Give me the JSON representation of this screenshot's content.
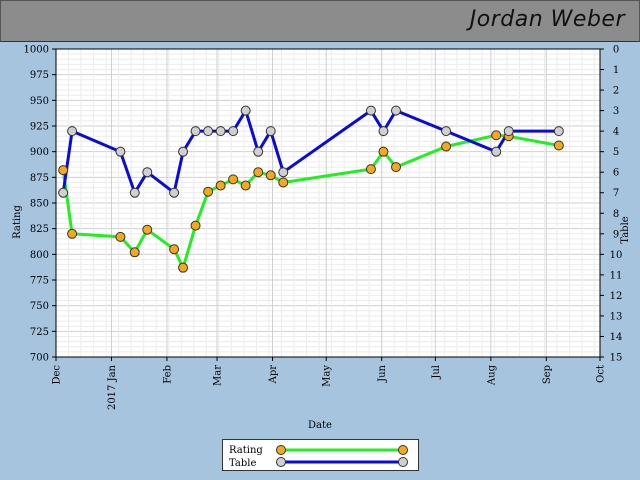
{
  "header": {
    "player_name": "Jordan Weber"
  },
  "chart_data": {
    "type": "line",
    "xlabel": "Date",
    "ylabel": "Rating",
    "ylabel_right": "Table",
    "ylim": [
      700,
      1000
    ],
    "y_ticks": [
      700,
      725,
      750,
      775,
      800,
      825,
      850,
      875,
      900,
      925,
      950,
      975,
      1000
    ],
    "y2lim": [
      0,
      15
    ],
    "y2_ticks": [
      0,
      1,
      2,
      3,
      4,
      5,
      6,
      7,
      8,
      9,
      10,
      11,
      12,
      13,
      14,
      15
    ],
    "y2_inverted": true,
    "xlim": [
      "2016-12-01",
      "2017-10-01"
    ],
    "x_ticks": [
      {
        "date": "2016-12-01",
        "label": "Dec"
      },
      {
        "date": "2017-01-01",
        "label": "2017 Jan"
      },
      {
        "date": "2017-02-01",
        "label": "Feb"
      },
      {
        "date": "2017-03-01",
        "label": "Mar"
      },
      {
        "date": "2017-04-01",
        "label": "Apr"
      },
      {
        "date": "2017-05-01",
        "label": "May"
      },
      {
        "date": "2017-06-01",
        "label": "Jun"
      },
      {
        "date": "2017-07-01",
        "label": "Jul"
      },
      {
        "date": "2017-08-01",
        "label": "Aug"
      },
      {
        "date": "2017-09-01",
        "label": "Sep"
      },
      {
        "date": "2017-10-01",
        "label": "Oct"
      }
    ],
    "grid": true,
    "legend_placement": "bottom-center",
    "series": [
      {
        "name": "Rating",
        "axis": "left",
        "line_color": "#22ee22",
        "marker_color": "#f5a81c",
        "points": [
          {
            "x": "2016-12-05",
            "y": 882
          },
          {
            "x": "2016-12-10",
            "y": 820
          },
          {
            "x": "2017-01-06",
            "y": 817
          },
          {
            "x": "2017-01-14",
            "y": 802
          },
          {
            "x": "2017-01-21",
            "y": 824
          },
          {
            "x": "2017-02-05",
            "y": 805
          },
          {
            "x": "2017-02-10",
            "y": 787
          },
          {
            "x": "2017-02-17",
            "y": 828
          },
          {
            "x": "2017-02-24",
            "y": 861
          },
          {
            "x": "2017-03-03",
            "y": 867
          },
          {
            "x": "2017-03-10",
            "y": 873
          },
          {
            "x": "2017-03-17",
            "y": 867
          },
          {
            "x": "2017-03-24",
            "y": 880
          },
          {
            "x": "2017-03-31",
            "y": 877
          },
          {
            "x": "2017-04-07",
            "y": 870
          },
          {
            "x": "2017-05-26",
            "y": 883
          },
          {
            "x": "2017-06-02",
            "y": 900
          },
          {
            "x": "2017-06-09",
            "y": 885
          },
          {
            "x": "2017-07-07",
            "y": 905
          },
          {
            "x": "2017-08-04",
            "y": 916
          },
          {
            "x": "2017-08-11",
            "y": 915
          },
          {
            "x": "2017-09-08",
            "y": 906
          }
        ]
      },
      {
        "name": "Table",
        "axis": "right",
        "line_color": "#0a0adc",
        "marker_color": "#d0d0d0",
        "points": [
          {
            "x": "2016-12-05",
            "y": 7
          },
          {
            "x": "2016-12-10",
            "y": 4
          },
          {
            "x": "2017-01-06",
            "y": 5
          },
          {
            "x": "2017-01-14",
            "y": 7
          },
          {
            "x": "2017-01-21",
            "y": 6
          },
          {
            "x": "2017-02-05",
            "y": 7
          },
          {
            "x": "2017-02-10",
            "y": 5
          },
          {
            "x": "2017-02-17",
            "y": 4
          },
          {
            "x": "2017-02-24",
            "y": 4
          },
          {
            "x": "2017-03-03",
            "y": 4
          },
          {
            "x": "2017-03-10",
            "y": 4
          },
          {
            "x": "2017-03-17",
            "y": 3
          },
          {
            "x": "2017-03-24",
            "y": 5
          },
          {
            "x": "2017-03-31",
            "y": 4
          },
          {
            "x": "2017-04-07",
            "y": 6
          },
          {
            "x": "2017-05-26",
            "y": 3
          },
          {
            "x": "2017-06-02",
            "y": 4
          },
          {
            "x": "2017-06-09",
            "y": 3
          },
          {
            "x": "2017-07-07",
            "y": 4
          },
          {
            "x": "2017-08-04",
            "y": 5
          },
          {
            "x": "2017-08-11",
            "y": 4
          },
          {
            "x": "2017-09-08",
            "y": 4
          }
        ]
      }
    ]
  }
}
